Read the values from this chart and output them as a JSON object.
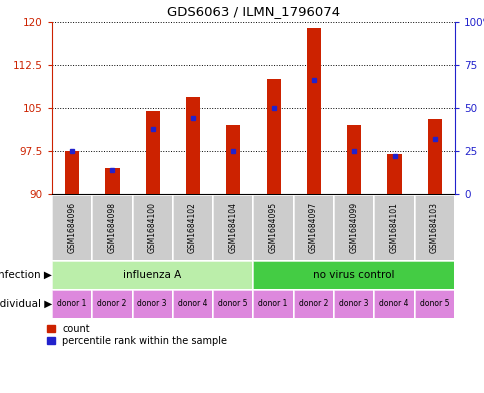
{
  "title": "GDS6063 / ILMN_1796074",
  "samples": [
    "GSM1684096",
    "GSM1684098",
    "GSM1684100",
    "GSM1684102",
    "GSM1684104",
    "GSM1684095",
    "GSM1684097",
    "GSM1684099",
    "GSM1684101",
    "GSM1684103"
  ],
  "count_values": [
    97.5,
    94.5,
    104.5,
    107.0,
    102.0,
    110.0,
    119.0,
    102.0,
    97.0,
    103.0
  ],
  "percentile_values": [
    25,
    14,
    38,
    44,
    25,
    50,
    66,
    25,
    22,
    32
  ],
  "ylim_left": [
    90,
    120
  ],
  "ylim_right": [
    0,
    100
  ],
  "yticks_left": [
    90,
    97.5,
    105,
    112.5,
    120
  ],
  "yticks_right": [
    0,
    25,
    50,
    75,
    100
  ],
  "ytick_labels_left": [
    "90",
    "97.5",
    "105",
    "112.5",
    "120"
  ],
  "ytick_labels_right": [
    "0",
    "25",
    "50",
    "75",
    "100%"
  ],
  "bar_color": "#cc2200",
  "marker_color": "#2222cc",
  "infection_groups": [
    {
      "label": "influenza A",
      "start": 0,
      "end": 5,
      "color": "#bbeeaa"
    },
    {
      "label": "no virus control",
      "start": 5,
      "end": 10,
      "color": "#44cc44"
    }
  ],
  "individual_labels": [
    "donor 1",
    "donor 2",
    "donor 3",
    "donor 4",
    "donor 5",
    "donor 1",
    "donor 2",
    "donor 3",
    "donor 4",
    "donor 5"
  ],
  "individual_color": "#dd88dd",
  "infection_label": "infection",
  "individual_label_text": "individual",
  "legend_count": "count",
  "legend_percentile": "percentile rank within the sample",
  "bar_width": 0.35,
  "base_value": 90
}
